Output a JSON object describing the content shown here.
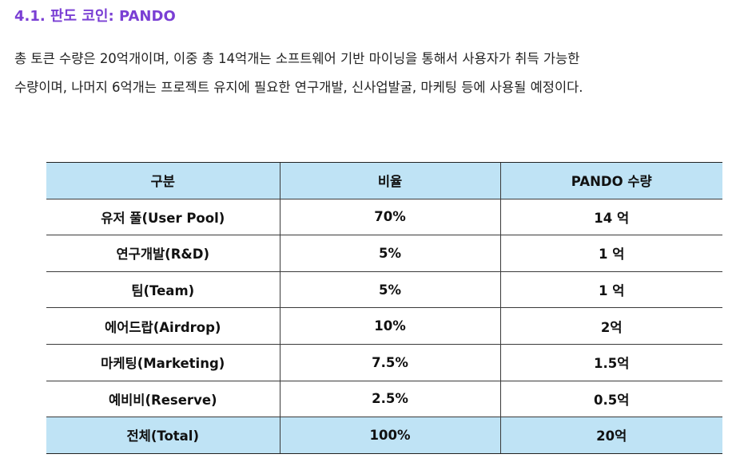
{
  "section": {
    "heading": "4.1. 판도 코인: PANDO",
    "paragraph_lines": [
      "총 토큰 수량은 20억개이며, 이중 총 14억개는 소프트웨어 기반 마이닝을 통해서 사용자가 취득 가능한",
      "수량이며, 나머지 6억개는 프로젝트 유지에 필요한 연구개발, 신사업발굴, 마케팅 등에 사용될 예정이다."
    ]
  },
  "table": {
    "headers": [
      "구분",
      "비율",
      "PANDO 수량"
    ],
    "rows": [
      [
        "유저 풀(User Pool)",
        "70%",
        "14 억"
      ],
      [
        "연구개발(R&D)",
        "5%",
        "1 억"
      ],
      [
        "팀(Team)",
        "5%",
        "1 억"
      ],
      [
        "에어드랍(Airdrop)",
        "10%",
        "2억"
      ],
      [
        "마케팅(Marketing)",
        "7.5%",
        "1.5억"
      ],
      [
        "예비비(Reserve)",
        "2.5%",
        "0.5억"
      ]
    ],
    "total": [
      "전체(Total)",
      "100%",
      "20억"
    ]
  },
  "colors": {
    "heading": "#7a3fd4",
    "header_fill": "#bfe3f5",
    "border": "#3a3a3a"
  }
}
